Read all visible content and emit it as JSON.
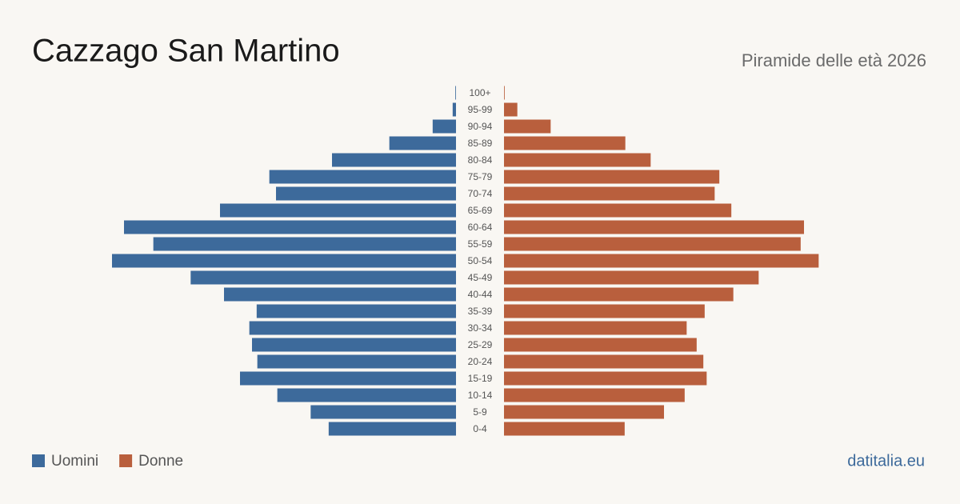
{
  "chart_data": {
    "type": "pyramid",
    "title": "Cazzago San Martino",
    "subtitle": "Piramide delle età 2026",
    "source": "datitalia.eu",
    "categories": [
      "100+",
      "95-99",
      "90-94",
      "85-89",
      "80-84",
      "75-79",
      "70-74",
      "65-69",
      "60-64",
      "55-59",
      "50-54",
      "45-49",
      "40-44",
      "35-39",
      "30-34",
      "25-29",
      "20-24",
      "15-19",
      "10-14",
      "5-9",
      "0-4"
    ],
    "series": [
      {
        "name": "Uomini",
        "color": "#3d6a9b",
        "values": [
          1,
          5,
          35,
          100,
          186,
          280,
          270,
          354,
          498,
          454,
          516,
          398,
          348,
          299,
          310,
          306,
          298,
          324,
          268,
          218,
          191
        ]
      },
      {
        "name": "Donne",
        "color": "#b95f3d",
        "values": [
          1,
          20,
          70,
          182,
          220,
          323,
          316,
          341,
          450,
          445,
          472,
          382,
          344,
          301,
          274,
          289,
          299,
          304,
          271,
          240,
          181
        ]
      }
    ]
  }
}
